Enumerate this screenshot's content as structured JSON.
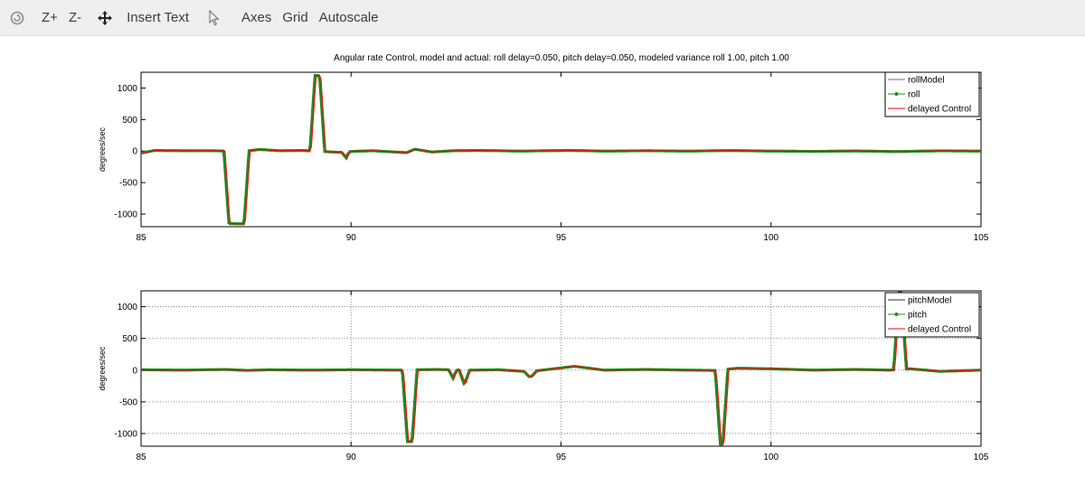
{
  "toolbar": {
    "items": [
      {
        "name": "reset-zoom-button",
        "icon": "magnifier-reset-icon"
      },
      {
        "name": "zoom-in-button",
        "label": "Z+"
      },
      {
        "name": "zoom-out-button",
        "label": "Z-"
      },
      {
        "name": "pan-button",
        "icon": "move-arrows-icon"
      },
      {
        "name": "insert-text-button",
        "label": "Insert Text"
      },
      {
        "name": "select-pointer-button",
        "icon": "pointer-icon"
      },
      {
        "name": "axes-button",
        "label": "Axes"
      },
      {
        "name": "grid-button",
        "label": "Grid"
      },
      {
        "name": "autoscale-button",
        "label": "Autoscale"
      }
    ]
  },
  "chart_data": [
    {
      "type": "line",
      "title": "Angular rate Control, model and actual: roll delay=0.050, pitch delay=0.050, modeled variance roll 1.00, pitch 1.00",
      "xlabel": "",
      "ylabel": "degrees/sec",
      "xlim": [
        85,
        105
      ],
      "ylim": [
        -1200,
        1250
      ],
      "xticks": [
        85,
        90,
        95,
        100,
        105
      ],
      "yticks": [
        -1000,
        -500,
        0,
        500,
        1000
      ],
      "grid": false,
      "legend": "top-right",
      "colors": {
        "model": "#6a5acd",
        "actual": "#228b22",
        "control": "#ff0000"
      },
      "series": [
        {
          "name": "rollModel",
          "style": "line"
        },
        {
          "name": "roll",
          "style": "line-dots"
        },
        {
          "name": "delayed Control",
          "style": "line"
        }
      ],
      "baseline": [
        [
          85,
          -30
        ],
        [
          85.3,
          10
        ],
        [
          86,
          5
        ],
        [
          86.7,
          5
        ],
        [
          87.4,
          -5
        ],
        [
          87.8,
          25
        ],
        [
          88.3,
          5
        ],
        [
          88.8,
          10
        ],
        [
          89.7,
          -20
        ],
        [
          90,
          -5
        ],
        [
          90.5,
          5
        ],
        [
          91.3,
          -25
        ],
        [
          91.5,
          30
        ],
        [
          91.9,
          -15
        ],
        [
          92.4,
          5
        ],
        [
          93,
          10
        ],
        [
          94,
          0
        ],
        [
          95.2,
          10
        ],
        [
          96,
          0
        ],
        [
          97,
          5
        ],
        [
          98,
          0
        ],
        [
          99,
          8
        ],
        [
          100,
          0
        ],
        [
          101,
          -5
        ],
        [
          102,
          2
        ],
        [
          103,
          -8
        ],
        [
          104,
          4
        ],
        [
          105,
          0
        ]
      ],
      "pulses": [
        {
          "start": 86.95,
          "end": 87.55,
          "amplitude": -1150
        },
        {
          "start": 89.0,
          "end": 89.35,
          "amplitude": 1200
        },
        {
          "start": 89.75,
          "end": 89.95,
          "amplitude": -100
        }
      ]
    },
    {
      "type": "line",
      "title": "",
      "xlabel": "",
      "ylabel": "degrees/sec",
      "xlim": [
        85,
        105
      ],
      "ylim": [
        -1200,
        1250
      ],
      "xticks": [
        85,
        90,
        95,
        100,
        105
      ],
      "yticks": [
        -1000,
        -500,
        0,
        500,
        1000
      ],
      "grid": true,
      "legend": "top-right",
      "colors": {
        "model": "#2a2a60",
        "actual": "#228b22",
        "control": "#ff0000"
      },
      "series": [
        {
          "name": "pitchModel",
          "style": "line"
        },
        {
          "name": "pitch",
          "style": "line-dots"
        },
        {
          "name": "delayed Control",
          "style": "line"
        }
      ],
      "baseline": [
        [
          85,
          5
        ],
        [
          86,
          0
        ],
        [
          87,
          10
        ],
        [
          87.5,
          -5
        ],
        [
          88,
          5
        ],
        [
          89,
          0
        ],
        [
          90,
          5
        ],
        [
          91.2,
          0
        ],
        [
          92,
          10
        ],
        [
          92.8,
          0
        ],
        [
          93.5,
          5
        ],
        [
          94.2,
          -25
        ],
        [
          94.6,
          5
        ],
        [
          95.3,
          60
        ],
        [
          96,
          0
        ],
        [
          97,
          10
        ],
        [
          98,
          0
        ],
        [
          98.6,
          -5
        ],
        [
          99.2,
          30
        ],
        [
          100,
          20
        ],
        [
          101,
          0
        ],
        [
          102,
          10
        ],
        [
          102.8,
          0
        ],
        [
          103.3,
          20
        ],
        [
          104,
          -20
        ],
        [
          105,
          0
        ]
      ],
      "pulses": [
        {
          "start": 91.2,
          "end": 91.55,
          "amplitude": -1130
        },
        {
          "start": 92.3,
          "end": 92.5,
          "amplitude": -150
        },
        {
          "start": 92.55,
          "end": 92.8,
          "amplitude": -220
        },
        {
          "start": 94.1,
          "end": 94.4,
          "amplitude": -80
        },
        {
          "start": 98.65,
          "end": 98.95,
          "amplitude": -1180
        },
        {
          "start": 102.9,
          "end": 103.2,
          "amplitude": 1210
        }
      ]
    }
  ]
}
